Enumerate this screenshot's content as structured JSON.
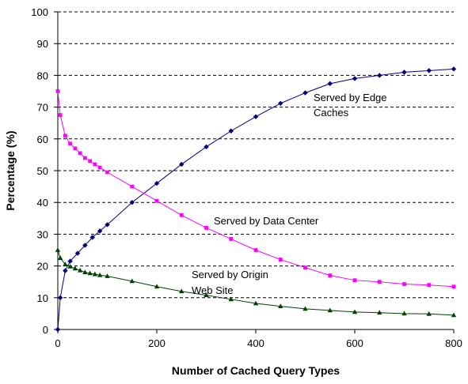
{
  "chart_data": {
    "type": "line",
    "xlabel": "Number of Cached Query Types",
    "ylabel": "Percentage (%)",
    "xlim": [
      0,
      800
    ],
    "ylim": [
      0,
      100
    ],
    "x_ticks": [
      0,
      200,
      400,
      600,
      800
    ],
    "y_ticks": [
      0,
      10,
      20,
      30,
      40,
      50,
      60,
      70,
      80,
      90,
      100
    ],
    "grid": "horizontal dashed",
    "legend": "none",
    "series": [
      {
        "annotation": "Served by Edge Caches",
        "label_lines": [
          "Served by Edge",
          "Caches"
        ],
        "color": "#000080",
        "marker": "diamond",
        "x": [
          0,
          5,
          15,
          25,
          40,
          55,
          70,
          85,
          100,
          150,
          200,
          250,
          300,
          350,
          400,
          450,
          500,
          550,
          600,
          650,
          700,
          750,
          800
        ],
        "y": [
          0,
          10,
          18.5,
          21.5,
          24,
          26.5,
          29,
          31,
          33,
          40,
          46,
          52,
          57.5,
          62.5,
          67,
          71.2,
          74.5,
          77.4,
          79,
          80,
          81,
          81.5,
          82
        ]
      },
      {
        "annotation": "Served by Data Center",
        "label_lines": [
          "Served by Data Center"
        ],
        "color": "#FF00FF",
        "marker": "square",
        "x": [
          0,
          5,
          15,
          25,
          35,
          45,
          55,
          65,
          75,
          85,
          100,
          150,
          200,
          250,
          300,
          350,
          400,
          450,
          500,
          550,
          600,
          650,
          700,
          750,
          800
        ],
        "y": [
          75,
          67.5,
          61,
          58.5,
          57,
          55.5,
          54,
          53,
          52,
          51,
          49.5,
          45,
          40.5,
          36,
          32,
          28.5,
          25,
          22,
          19.5,
          17,
          15.5,
          15,
          14.3,
          14,
          13.5
        ]
      },
      {
        "annotation": "Served by Origin Web Site",
        "label_lines": [
          "Served by Origin",
          "Web Site"
        ],
        "color": "#004000",
        "marker": "triangle",
        "x": [
          0,
          5,
          15,
          25,
          35,
          45,
          55,
          65,
          75,
          85,
          100,
          150,
          200,
          250,
          300,
          350,
          400,
          450,
          500,
          550,
          600,
          650,
          700,
          750,
          800
        ],
        "y": [
          25,
          22.5,
          20.5,
          19.8,
          19.2,
          18.6,
          18,
          17.7,
          17.4,
          17.1,
          16.8,
          15.2,
          13.5,
          12,
          10.8,
          9.5,
          8.2,
          7.3,
          6.5,
          6,
          5.5,
          5.3,
          5,
          4.9,
          4.5
        ]
      }
    ]
  }
}
